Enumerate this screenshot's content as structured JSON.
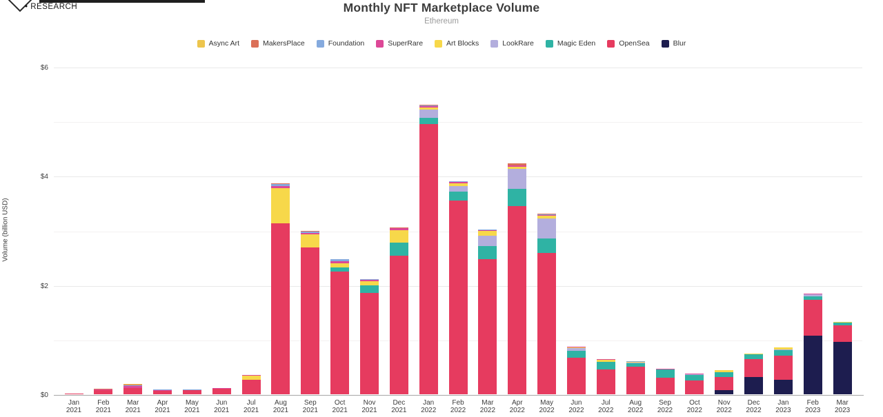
{
  "brand": {
    "research_label": "• RESEARCH"
  },
  "chart_data": {
    "type": "bar",
    "stacked": true,
    "title": "Monthly NFT Marketplace Volume",
    "subtitle": "Ethereum",
    "ylabel": "Volume (billion USD)",
    "ylim": [
      0,
      6
    ],
    "yticks_all": [
      0,
      1,
      2,
      3,
      4,
      5,
      6
    ],
    "yticks_labeled": {
      "0": "$0",
      "2": "$2",
      "4": "$4",
      "6": "$6"
    },
    "grid": "horizontal",
    "legend_position": "top",
    "legend_order": [
      "Async Art",
      "MakersPlace",
      "Foundation",
      "SuperRare",
      "Art Blocks",
      "LookRare",
      "Magic Eden",
      "OpenSea",
      "Blur"
    ],
    "categories": [
      "Jan 2021",
      "Feb 2021",
      "Mar 2021",
      "Apr 2021",
      "May 2021",
      "Jun 2021",
      "Jul 2021",
      "Aug 2021",
      "Sep 2021",
      "Oct 2021",
      "Nov 2021",
      "Dec 2021",
      "Jan 2022",
      "Feb 2022",
      "Mar 2022",
      "Apr 2022",
      "May 2022",
      "Jun 2022",
      "Jul 2022",
      "Aug 2022",
      "Sep 2022",
      "Oct 2022",
      "Nov 2022",
      "Dec 2022",
      "Jan 2023",
      "Feb 2023",
      "Mar 2023"
    ],
    "units": "billion USD",
    "stack_order_note": "series listed bottom-to-top",
    "series": [
      {
        "name": "Blur",
        "color": "#1d1d4f",
        "values": [
          0,
          0,
          0,
          0,
          0,
          0,
          0,
          0,
          0,
          0,
          0,
          0,
          0,
          0,
          0,
          0,
          0,
          0,
          0,
          0,
          0,
          0,
          0.07,
          0.31,
          0.27,
          1.07,
          0.96
        ]
      },
      {
        "name": "OpenSea",
        "color": "#e63b5f",
        "values": [
          0.01,
          0.08,
          0.12,
          0.06,
          0.07,
          0.1,
          0.26,
          3.13,
          2.69,
          2.25,
          1.86,
          2.54,
          4.95,
          3.55,
          2.48,
          3.45,
          2.59,
          0.67,
          0.46,
          0.5,
          0.3,
          0.25,
          0.24,
          0.34,
          0.44,
          0.66,
          0.3
        ]
      },
      {
        "name": "Magic Eden",
        "color": "#2fb3a4",
        "values": [
          0,
          0,
          0,
          0,
          0,
          0,
          0,
          0,
          0,
          0.07,
          0.14,
          0.24,
          0.12,
          0.16,
          0.23,
          0.32,
          0.27,
          0.13,
          0.13,
          0.07,
          0.15,
          0.11,
          0.09,
          0.08,
          0.1,
          0.06,
          0.05
        ]
      },
      {
        "name": "LookRare",
        "color": "#b3aedd",
        "values": [
          0,
          0,
          0,
          0,
          0,
          0,
          0,
          0,
          0,
          0,
          0,
          0,
          0.15,
          0.1,
          0.19,
          0.36,
          0.36,
          0.05,
          0.01,
          0.01,
          0.005,
          0.005,
          0.01,
          0.005,
          0.01,
          0.04,
          0.01
        ]
      },
      {
        "name": "Art Blocks",
        "color": "#f7d84a",
        "values": [
          0,
          0,
          0,
          0,
          0,
          0.005,
          0.08,
          0.65,
          0.24,
          0.08,
          0.07,
          0.23,
          0.04,
          0.06,
          0.09,
          0.04,
          0.05,
          0.01,
          0.03,
          0.01,
          0.005,
          0.005,
          0.03,
          0.005,
          0.04,
          0.005,
          0.005
        ]
      },
      {
        "name": "SuperRare",
        "color": "#dd4897",
        "values": [
          0.005,
          0.01,
          0.03,
          0.015,
          0.01,
          0.01,
          0.01,
          0.04,
          0.03,
          0.04,
          0.03,
          0.03,
          0.02,
          0.02,
          0.02,
          0.02,
          0.02,
          0.01,
          0.01,
          0.01,
          0.005,
          0.005,
          0.005,
          0.005,
          0.005,
          0.005,
          0.005
        ]
      },
      {
        "name": "Foundation",
        "color": "#85aade",
        "values": [
          0,
          0.005,
          0.02,
          0.01,
          0.005,
          0.005,
          0.005,
          0.03,
          0.02,
          0.03,
          0.01,
          0.01,
          0.01,
          0.01,
          0.01,
          0.01,
          0.01,
          0.005,
          0.005,
          0.005,
          0,
          0,
          0,
          0,
          0,
          0,
          0
        ]
      },
      {
        "name": "MakersPlace",
        "color": "#db7058",
        "values": [
          0.003,
          0.005,
          0.01,
          0.01,
          0.005,
          0,
          0,
          0.01,
          0.01,
          0.01,
          0.005,
          0.005,
          0.02,
          0.01,
          0.005,
          0.03,
          0.005,
          0,
          0,
          0,
          0,
          0,
          0,
          0,
          0,
          0,
          0
        ]
      },
      {
        "name": "Async Art",
        "color": "#edc54d",
        "values": [
          0,
          0,
          0.005,
          0,
          0,
          0,
          0,
          0,
          0,
          0,
          0,
          0,
          0,
          0,
          0,
          0,
          0,
          0,
          0,
          0,
          0,
          0,
          0,
          0,
          0,
          0,
          0
        ]
      }
    ]
  }
}
